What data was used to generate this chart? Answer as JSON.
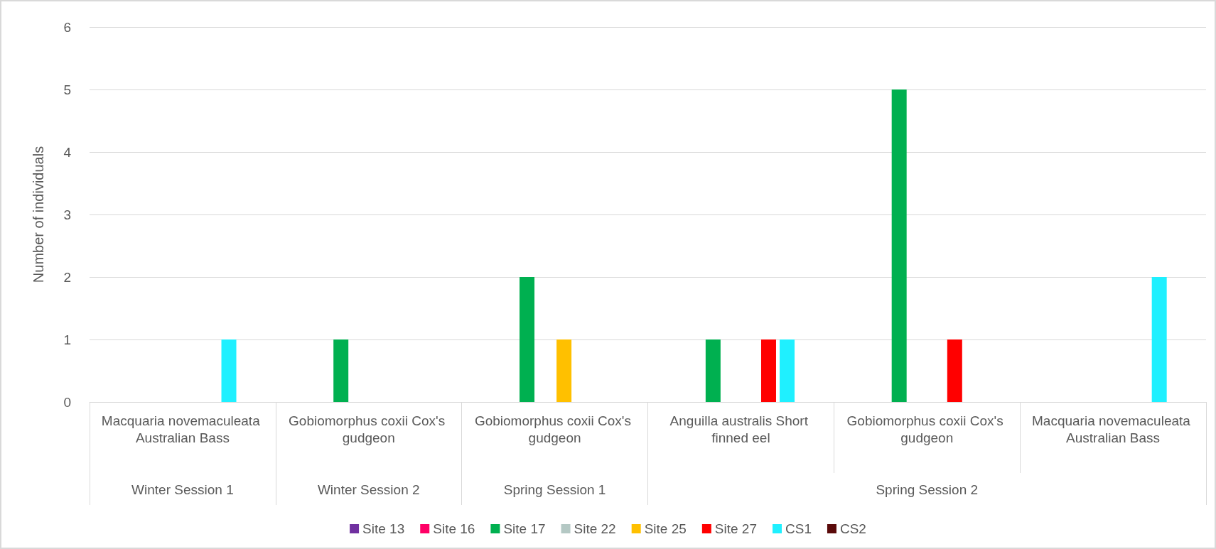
{
  "chart_data": {
    "type": "bar",
    "ylabel": "Number of individuals",
    "categories": [
      "Macquaria novemaculeata Australian Bass",
      "Gobiomorphus coxii Cox's gudgeon",
      "Gobiomorphus coxii Cox's gudgeon",
      "Anguilla australis Short finned eel",
      "Gobiomorphus coxii Cox's gudgeon",
      "Macquaria novemaculeata Australian Bass"
    ],
    "annotations": [
      "Winter Session 1",
      "Winter Session 2",
      "Spring Session 1",
      "Spring Session 2"
    ],
    "series": [
      {
        "name": "Site 13",
        "color": "#7030a0",
        "values": [
          0,
          0,
          0,
          0,
          0,
          0
        ]
      },
      {
        "name": "Site 16",
        "color": "#ff0066",
        "values": [
          0,
          0,
          0,
          0,
          0,
          0
        ]
      },
      {
        "name": "Site 17",
        "color": "#00b050",
        "values": [
          0,
          1,
          2,
          1,
          5,
          0
        ]
      },
      {
        "name": "Site 22",
        "color": "#b4c8c4",
        "values": [
          0,
          0,
          0,
          0,
          0,
          0
        ]
      },
      {
        "name": "Site 25",
        "color": "#ffc000",
        "values": [
          0,
          0,
          1,
          0,
          0,
          0
        ]
      },
      {
        "name": "Site 27",
        "color": "#ff0000",
        "values": [
          0,
          0,
          0,
          1,
          1,
          0
        ]
      },
      {
        "name": "CS1",
        "color": "#1ff0ff",
        "values": [
          1,
          0,
          0,
          1,
          0,
          2
        ]
      },
      {
        "name": "CS2",
        "color": "#5a0a0a",
        "values": [
          0,
          0,
          0,
          0,
          0,
          0
        ]
      }
    ],
    "ylim": [
      0,
      6
    ],
    "yticks": [
      0,
      1,
      2,
      3,
      4,
      5,
      6
    ],
    "grid": "y",
    "legend": "bottom"
  }
}
